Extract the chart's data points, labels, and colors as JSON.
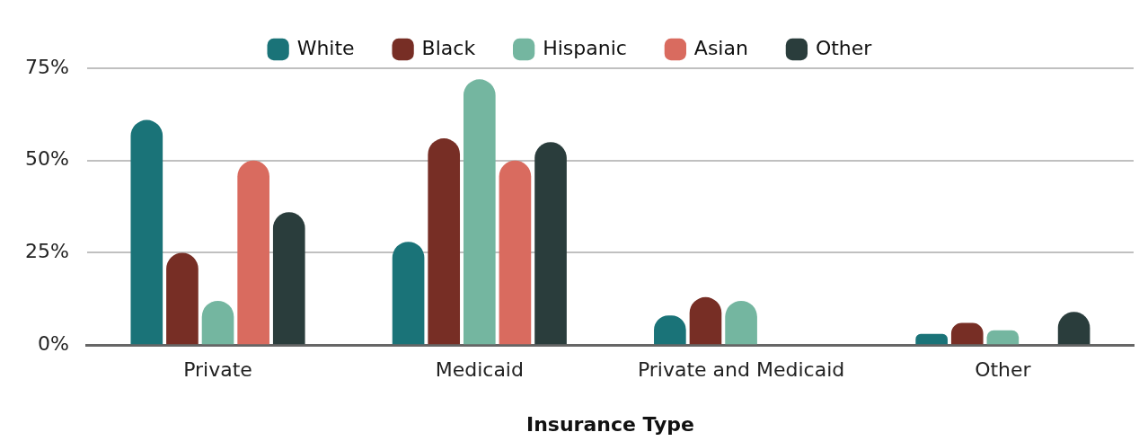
{
  "chart_data": {
    "type": "bar",
    "xlabel": "Insurance Type",
    "categories": [
      "Private",
      "Medicaid",
      "Private and Medicaid",
      "Other"
    ],
    "series": [
      {
        "name": "White",
        "color": "#1a7378",
        "values": [
          61,
          28,
          8,
          3
        ]
      },
      {
        "name": "Black",
        "color": "#772e25",
        "values": [
          25,
          56,
          13,
          6
        ]
      },
      {
        "name": "Hispanic",
        "color": "#74b6a0",
        "values": [
          12,
          72,
          12,
          4
        ]
      },
      {
        "name": "Asian",
        "color": "#d96b5f",
        "values": [
          50,
          50,
          0,
          0
        ]
      },
      {
        "name": "Other",
        "color": "#2a3d3c",
        "values": [
          36,
          55,
          0,
          9
        ]
      }
    ],
    "ylim": [
      0,
      75
    ],
    "yticks": [
      {
        "value": 0,
        "label": "0%"
      },
      {
        "value": 25,
        "label": "25%"
      },
      {
        "value": 50,
        "label": "50%"
      },
      {
        "value": 75,
        "label": "75%"
      }
    ],
    "grid": "y",
    "legend": "top"
  }
}
